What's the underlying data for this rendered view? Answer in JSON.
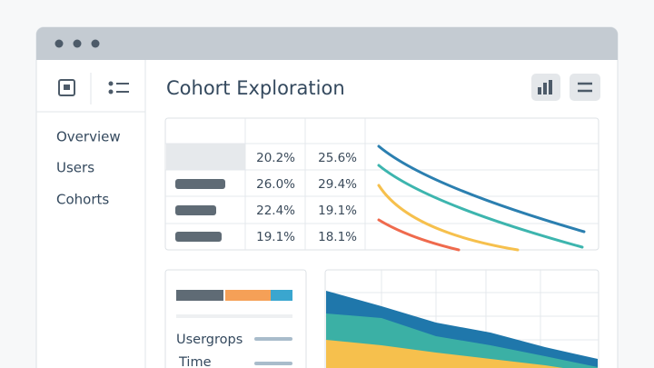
{
  "header": {
    "title": "Cohort Exploration"
  },
  "sidebar": {
    "items": [
      "Overview",
      "Users",
      "Cohorts"
    ]
  },
  "table": {
    "rows": [
      [
        "20.2%",
        "25.6%"
      ],
      [
        "26.0%",
        "29.4%"
      ],
      [
        "22.4%",
        "19.1%"
      ],
      [
        "19.1%",
        "18.1%"
      ]
    ]
  },
  "filters": {
    "labels": [
      "Usergrops",
      "Time"
    ]
  }
}
